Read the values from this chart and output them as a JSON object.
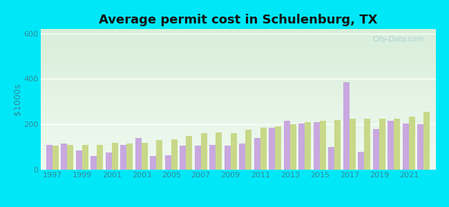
{
  "title": "Average permit cost in Schulenburg, TX",
  "ylabel": "$1000s",
  "years": [
    1997,
    1998,
    1999,
    2000,
    2001,
    2002,
    2003,
    2004,
    2005,
    2006,
    2007,
    2008,
    2009,
    2010,
    2011,
    2012,
    2013,
    2014,
    2015,
    2016,
    2017,
    2018,
    2019,
    2020,
    2021,
    2022
  ],
  "schulenburg": [
    110,
    115,
    85,
    60,
    75,
    110,
    140,
    60,
    65,
    105,
    105,
    110,
    105,
    115,
    140,
    185,
    215,
    205,
    210,
    100,
    385,
    80,
    180,
    215,
    205,
    200
  ],
  "texas": [
    105,
    110,
    110,
    110,
    120,
    115,
    120,
    130,
    135,
    150,
    160,
    165,
    160,
    175,
    185,
    190,
    200,
    210,
    215,
    220,
    225,
    225,
    225,
    225,
    235,
    255
  ],
  "schulenburg_color": "#c8a8df",
  "texas_color": "#c8d888",
  "outer_background": "#00e8f8",
  "ylim": [
    0,
    620
  ],
  "yticks": [
    0,
    200,
    400,
    600
  ],
  "title_fontsize": 13,
  "tick_label_fontsize": 8,
  "ylabel_fontsize": 9,
  "legend_fontsize": 9,
  "bar_width": 0.42,
  "watermark": "City-Data.com"
}
